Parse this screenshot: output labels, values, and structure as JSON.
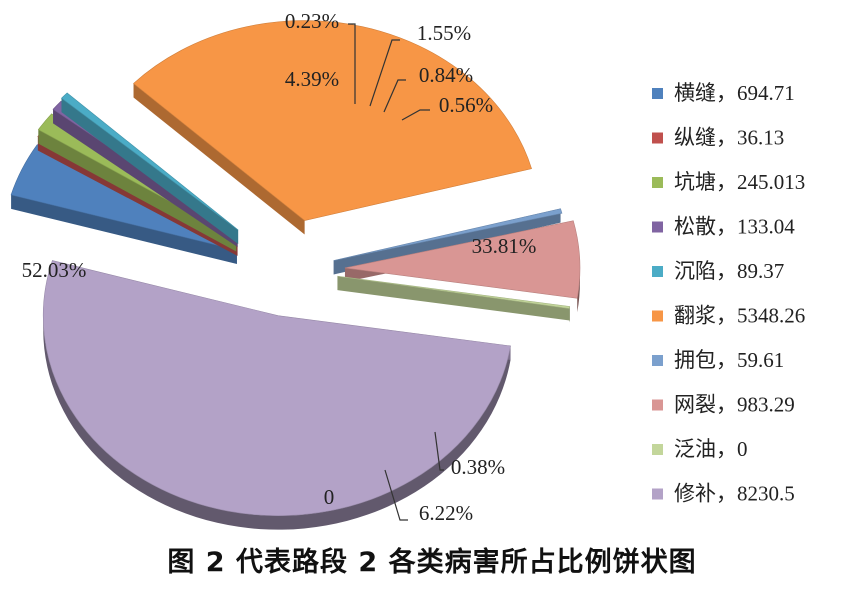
{
  "chart_data": {
    "type": "pie",
    "title": "",
    "caption": "图 2  代表路段 2 各类病害所占比例饼状图",
    "legend_position": "right",
    "slices": [
      {
        "name": "横缝",
        "value": 694.71,
        "value_label": "694.71",
        "percent_label": "4.39%",
        "color": "#4f81bd"
      },
      {
        "name": "纵缝",
        "value": 36.13,
        "value_label": "36.13",
        "percent_label": "0.23%",
        "color": "#c0504d"
      },
      {
        "name": "坑塘",
        "value": 245.013,
        "value_label": "245.013",
        "percent_label": "1.55%",
        "color": "#9bbb59"
      },
      {
        "name": "松散",
        "value": 133.04,
        "value_label": "133.04",
        "percent_label": "0.84%",
        "color": "#8064a2"
      },
      {
        "name": "沉陷",
        "value": 89.37,
        "value_label": "89.37",
        "percent_label": "0.56%",
        "color": "#4bacc6"
      },
      {
        "name": "翻浆",
        "value": 5348.26,
        "value_label": "5348.26",
        "percent_label": "33.81%",
        "color": "#f79646"
      },
      {
        "name": "拥包",
        "value": 59.61,
        "value_label": "59.61",
        "percent_label": "0.38%",
        "color": "#7ba0cd"
      },
      {
        "name": "网裂",
        "value": 983.29,
        "value_label": "983.29",
        "percent_label": "6.22%",
        "color": "#d99694"
      },
      {
        "name": "泛油",
        "value": 0,
        "value_label": "0",
        "percent_label": "0",
        "color": "#c3d69b"
      },
      {
        "name": "修补",
        "value": 8230.5,
        "value_label": "8230.5",
        "percent_label": "52.03%",
        "color": "#b3a2c7"
      }
    ]
  }
}
